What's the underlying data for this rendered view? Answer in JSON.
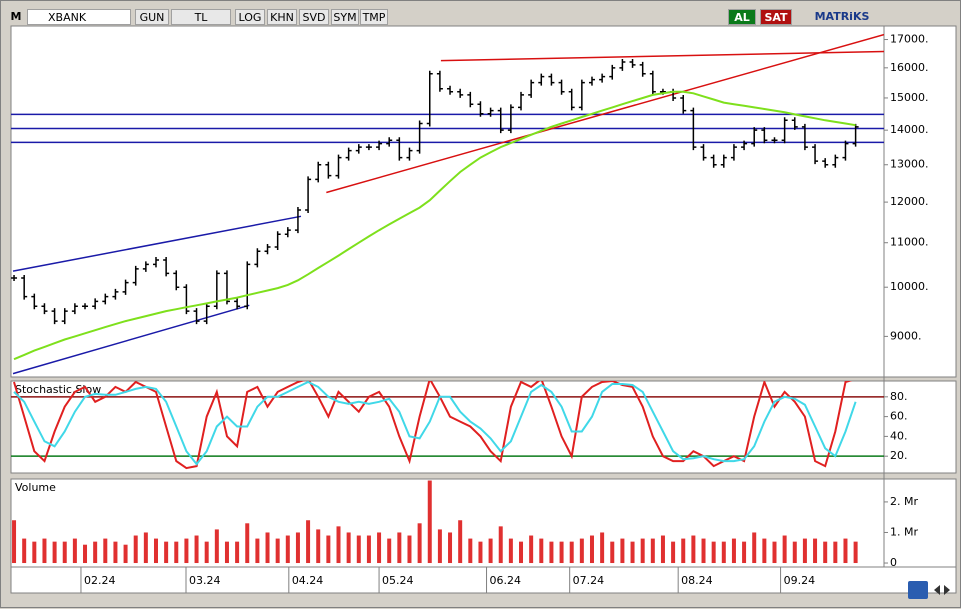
{
  "toolbar": {
    "menu": "M",
    "symbol": "XBANK",
    "period": "GUN",
    "currency": "TL",
    "log": "LOG",
    "khn": "KHN",
    "svd": "SVD",
    "sym": "SYM",
    "tmp": "TMP",
    "buy": "AL",
    "sell": "SAT",
    "brand": "MATRiKS"
  },
  "chart_data": [
    {
      "type": "ohlc",
      "log_scale": true,
      "xlim": [
        -0.3,
        85.8
      ],
      "ylim": [
        8250,
        17500
      ],
      "yticks": [
        {
          "value": 17000,
          "label": "17000."
        },
        {
          "value": 16000,
          "label": "16000."
        },
        {
          "value": 15000,
          "label": "15000."
        },
        {
          "value": 14000,
          "label": "14000."
        },
        {
          "value": 13000,
          "label": "13000."
        },
        {
          "value": 12000,
          "label": "12000."
        },
        {
          "value": 11000,
          "label": "11000."
        },
        {
          "value": 10000,
          "label": "10000."
        },
        {
          "value": 9000,
          "label": "9000."
        }
      ],
      "series": [
        {
          "color": "#000000",
          "values": [
            10200,
            9800,
            9600,
            9500,
            9300,
            9500,
            9600,
            9600,
            9700,
            9800,
            9900,
            10100,
            10400,
            10500,
            10600,
            10300,
            10000,
            9500,
            9300,
            9600,
            10300,
            9700,
            9600,
            10500,
            10800,
            10900,
            11200,
            11300,
            11800,
            12600,
            13000,
            12700,
            13200,
            13400,
            13500,
            13500,
            13600,
            13700,
            13200,
            13400,
            14200,
            15800,
            15300,
            15200,
            15100,
            14800,
            14500,
            14600,
            14000,
            14700,
            15100,
            15500,
            15700,
            15500,
            15200,
            14700,
            15500,
            15600,
            15700,
            16000,
            16200,
            16100,
            15800,
            15200,
            15200,
            15000,
            14600,
            13500,
            13200,
            13000,
            13200,
            13500,
            13600,
            14000,
            13700,
            13700,
            14300,
            14100,
            13500,
            13100,
            13000,
            13200,
            13600,
            14100
          ]
        },
        {
          "type": "line",
          "color": "#7ee01c",
          "values": [
            8570,
            8650,
            8730,
            8800,
            8870,
            8940,
            9000,
            9060,
            9120,
            9180,
            9240,
            9300,
            9350,
            9400,
            9450,
            9500,
            9540,
            9580,
            9620,
            9660,
            9700,
            9740,
            9780,
            9830,
            9880,
            9930,
            9980,
            10050,
            10150,
            10280,
            10420,
            10560,
            10700,
            10850,
            11000,
            11150,
            11300,
            11440,
            11580,
            11720,
            11860,
            12050,
            12300,
            12550,
            12800,
            13000,
            13200,
            13350,
            13500,
            13620,
            13740,
            13860,
            13980,
            14100,
            14200,
            14300,
            14400,
            14500,
            14600,
            14700,
            14800,
            14900,
            15000,
            15100,
            15150,
            15200,
            15200,
            15150,
            15050,
            14950,
            14850,
            14800,
            14750,
            14700,
            14650,
            14600,
            14550,
            14480,
            14420,
            14360,
            14300,
            14250,
            14200,
            14150
          ]
        }
      ],
      "trendlines": [
        {
          "color": "#1a1aa8",
          "points": [
            [
              -0.1,
              10350
            ],
            [
              28.3,
              11640
            ]
          ]
        },
        {
          "color": "#1a1aa8",
          "points": [
            [
              -0.1,
              8310
            ],
            [
              23.2,
              9620
            ]
          ]
        },
        {
          "color": "#1a1aa8",
          "points": [
            [
              -0.3,
              14480
            ],
            [
              85.8,
              14480
            ]
          ]
        },
        {
          "color": "#1a1aa8",
          "points": [
            [
              -0.3,
              14050
            ],
            [
              85.8,
              14050
            ]
          ]
        },
        {
          "color": "#1a1aa8",
          "points": [
            [
              -0.3,
              13640
            ],
            [
              85.8,
              13640
            ]
          ]
        },
        {
          "color": "#d81010",
          "points": [
            [
              30.8,
              12250
            ],
            [
              85.8,
              17180
            ]
          ]
        },
        {
          "color": "#d81010",
          "points": [
            [
              42.1,
              16250
            ],
            [
              85.8,
              16570
            ]
          ]
        }
      ]
    },
    {
      "type": "line",
      "title": "Stochastic.Slow",
      "xlim": [
        -0.3,
        85.8
      ],
      "ylim": [
        3,
        96
      ],
      "yticks": [
        {
          "value": 80,
          "label": "80."
        },
        {
          "value": 60,
          "label": "60."
        },
        {
          "value": 40,
          "label": "40."
        },
        {
          "value": 20,
          "label": "20."
        }
      ],
      "levels": [
        {
          "value": 80,
          "color": "#8b1010"
        },
        {
          "value": 20,
          "color": "#0a7a1a"
        }
      ],
      "series": [
        {
          "color": "#e02020",
          "values": [
            95,
            60,
            25,
            15,
            45,
            70,
            85,
            90,
            75,
            80,
            90,
            85,
            95,
            90,
            85,
            50,
            15,
            8,
            10,
            60,
            85,
            40,
            30,
            85,
            90,
            70,
            85,
            90,
            95,
            98,
            80,
            60,
            85,
            75,
            65,
            80,
            85,
            70,
            40,
            15,
            60,
            98,
            80,
            60,
            55,
            50,
            40,
            25,
            15,
            70,
            95,
            90,
            98,
            70,
            40,
            20,
            80,
            90,
            95,
            96,
            92,
            90,
            70,
            40,
            20,
            15,
            15,
            25,
            20,
            10,
            15,
            20,
            15,
            60,
            95,
            70,
            85,
            75,
            60,
            15,
            10,
            45,
            95,
            98
          ]
        },
        {
          "color": "#40d8e8",
          "values": [
            85,
            75,
            55,
            35,
            30,
            45,
            65,
            80,
            83,
            82,
            82,
            85,
            88,
            90,
            88,
            75,
            50,
            25,
            12,
            25,
            50,
            60,
            50,
            50,
            70,
            80,
            80,
            85,
            90,
            95,
            90,
            80,
            75,
            73,
            75,
            73,
            75,
            78,
            65,
            40,
            38,
            55,
            80,
            80,
            65,
            55,
            48,
            38,
            25,
            35,
            60,
            85,
            92,
            85,
            70,
            45,
            45,
            60,
            85,
            93,
            93,
            92,
            85,
            65,
            45,
            25,
            17,
            18,
            20,
            17,
            15,
            15,
            17,
            30,
            55,
            75,
            80,
            78,
            72,
            50,
            28,
            20,
            45,
            75
          ]
        }
      ]
    },
    {
      "type": "bar",
      "title": "Volume",
      "xlim": [
        -0.3,
        85.8
      ],
      "ylim": [
        -0.13,
        2.75
      ],
      "yticks": [
        {
          "value": 2,
          "label": "2. Mr"
        },
        {
          "value": 1,
          "label": "1. Mr"
        },
        0
      ],
      "xticks": [
        {
          "value": 6.6,
          "label": "02.24"
        },
        {
          "value": 16.96,
          "label": "03.24"
        },
        {
          "value": 27.1,
          "label": "04.24"
        },
        {
          "value": 36.0,
          "label": "05.24"
        },
        {
          "value": 46.6,
          "label": "06.24"
        },
        {
          "value": 54.8,
          "label": "07.24"
        },
        {
          "value": 65.5,
          "label": "08.24"
        },
        {
          "value": 75.6,
          "label": "09.24"
        }
      ],
      "color": "#e03030",
      "values": [
        1.4,
        0.8,
        0.7,
        0.8,
        0.7,
        0.7,
        0.8,
        0.6,
        0.7,
        0.8,
        0.7,
        0.6,
        0.9,
        1.0,
        0.8,
        0.7,
        0.7,
        0.8,
        0.9,
        0.7,
        1.1,
        0.7,
        0.7,
        1.3,
        0.8,
        1.0,
        0.8,
        0.9,
        1.0,
        1.4,
        1.1,
        0.9,
        1.2,
        1.0,
        0.9,
        0.9,
        1.0,
        0.8,
        1.0,
        0.9,
        1.3,
        2.7,
        1.1,
        1.0,
        1.4,
        0.8,
        0.7,
        0.8,
        1.2,
        0.8,
        0.7,
        0.9,
        0.8,
        0.7,
        0.7,
        0.7,
        0.8,
        0.9,
        1.0,
        0.7,
        0.8,
        0.7,
        0.8,
        0.8,
        0.9,
        0.7,
        0.8,
        0.9,
        0.8,
        0.7,
        0.7,
        0.8,
        0.7,
        1.0,
        0.8,
        0.7,
        0.9,
        0.7,
        0.8,
        0.8,
        0.7,
        0.7,
        0.8,
        0.7
      ]
    }
  ]
}
